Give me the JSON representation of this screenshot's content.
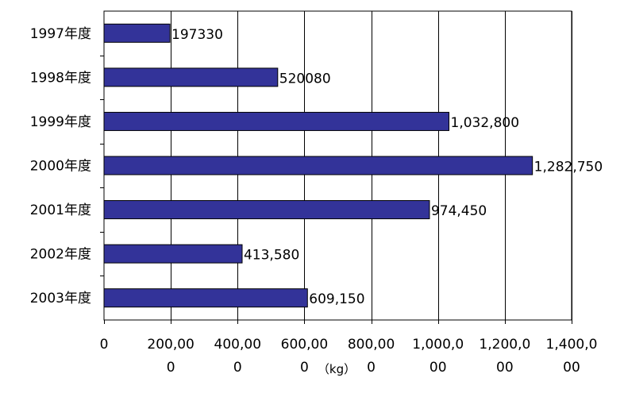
{
  "chart_data": {
    "type": "bar",
    "orientation": "horizontal",
    "title": "",
    "xlabel": "",
    "ylabel": "",
    "unit": "（kg）",
    "categories": [
      "1997年度",
      "1998年度",
      "1999年度",
      "2000年度",
      "2001年度",
      "2002年度",
      "2003年度"
    ],
    "values": [
      197330,
      520080,
      1032800,
      1282750,
      974450,
      413580,
      609150
    ],
    "data_labels": [
      "197330",
      "520080",
      "1,032,800",
      "1,282,750",
      "974,450",
      "413,580",
      "609,150"
    ],
    "xlim": [
      0,
      1400000
    ],
    "xticks": [
      0,
      200000,
      400000,
      600000,
      800000,
      1000000,
      1200000,
      1400000
    ],
    "xtick_labels": [
      [
        "0",
        ""
      ],
      [
        "200,00",
        "0"
      ],
      [
        "400,00",
        "0"
      ],
      [
        "600,00",
        "0"
      ],
      [
        "800,00",
        "0"
      ],
      [
        "1,000,0",
        "00"
      ],
      [
        "1,200,0",
        "00"
      ],
      [
        "1,400,0",
        "00"
      ]
    ],
    "grid": "vertical",
    "legend": "none",
    "colors": {
      "bar_fill": "#333399",
      "bar_stroke": "#000000",
      "grid": "#000000",
      "axis": "#000000",
      "background": "#ffffff"
    }
  }
}
